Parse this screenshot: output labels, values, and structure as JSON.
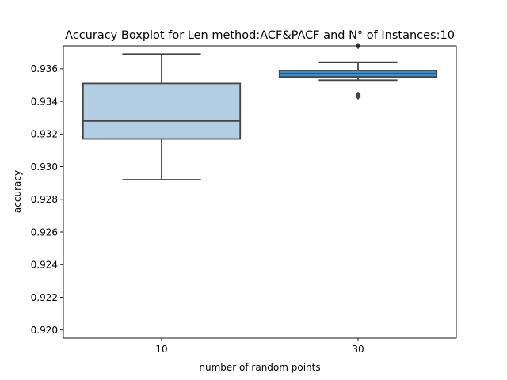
{
  "chart_data": {
    "type": "box",
    "title": "Accuracy Boxplot for Len method:ACF&PACF and N° of Instances:10",
    "xlabel": "number of random points",
    "ylabel": "accuracy",
    "categories": [
      "10",
      "30"
    ],
    "ylim": [
      0.9195,
      0.9374
    ],
    "yticks": [
      0.92,
      0.922,
      0.924,
      0.926,
      0.928,
      0.93,
      0.932,
      0.934,
      0.936
    ],
    "ytick_labels": [
      "0.920",
      "0.922",
      "0.924",
      "0.926",
      "0.928",
      "0.930",
      "0.932",
      "0.934",
      "0.936"
    ],
    "grid": false,
    "boxes": [
      {
        "category": "10",
        "whisker_low": 0.9292,
        "q1": 0.9317,
        "median": 0.9328,
        "q3": 0.9351,
        "whisker_high": 0.9369,
        "outliers": [],
        "color": "#b3cde3"
      },
      {
        "category": "30",
        "whisker_low": 0.9353,
        "q1": 0.9355,
        "median": 0.9357,
        "q3": 0.9359,
        "whisker_high": 0.9364,
        "outliers": [
          0.9343,
          0.9344,
          0.9374
        ],
        "color": "#3f8fc8"
      }
    ],
    "line_color": "#444444",
    "outlier_color": "#444444"
  }
}
